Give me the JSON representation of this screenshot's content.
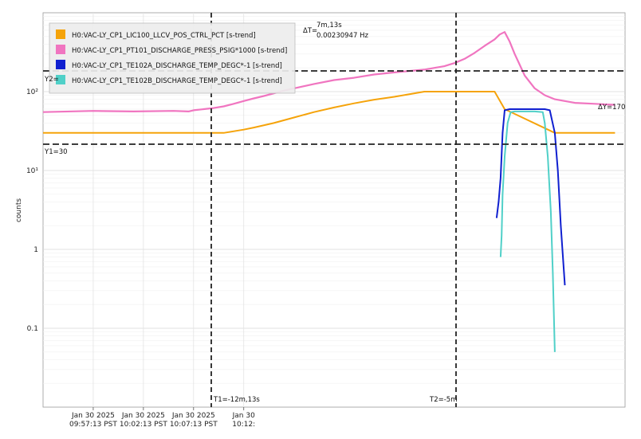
{
  "chart_data": {
    "type": "line",
    "ylabel": "counts",
    "yscale": "log",
    "ylim": [
      0.01,
      1000
    ],
    "y_ticks": [
      {
        "value": 100,
        "label": "10²"
      },
      {
        "value": 10,
        "label": "10¹"
      },
      {
        "value": 1,
        "label": "1"
      },
      {
        "value": 0.1,
        "label": "0.1"
      }
    ],
    "x_unit": "minutes from Jan 30 2025 09:57:13 PST",
    "xlim": [
      -5,
      53
    ],
    "x_ticks": [
      {
        "value": 0,
        "line1": "Jan 30 2025",
        "line2": "09:57:13 PST"
      },
      {
        "value": 5,
        "line1": "Jan 30 2025",
        "line2": "10:02:13 PST"
      },
      {
        "value": 10,
        "line1": "Jan 30 2025",
        "line2": "10:07:13 PST"
      },
      {
        "value": 15,
        "line1": "Jan 30",
        "line2": "10:12:"
      }
    ],
    "grid": true,
    "legend_position": "top-left",
    "series": [
      {
        "name": "H0:VAC-LY_CP1_LIC100_LLCV_POS_CTRL_PCT [s-trend]",
        "color": "#f5a30a",
        "x": [
          -5,
          0,
          4,
          8,
          10,
          10.05,
          11.0,
          12.0,
          12.5,
          13.0,
          15.0,
          16.0,
          18.0,
          20.0,
          22.0,
          24.0,
          26.0,
          28.0,
          30.0,
          33.0,
          35.0,
          38.0,
          40.0,
          41.0,
          46.0,
          50.0,
          52.0
        ],
        "y": [
          30,
          30,
          30,
          30,
          30,
          30,
          30,
          30,
          30,
          30,
          33,
          35,
          40,
          47,
          55,
          63,
          71,
          79,
          86,
          100,
          100,
          100,
          100,
          60,
          30,
          30,
          30
        ]
      },
      {
        "name": "H0:VAC-LY_CP1_PT101_DISCHARGE_PRESS_PSIG*1000 [s-trend]",
        "color": "#f075c0",
        "x": [
          -5,
          0,
          4,
          8,
          9.5,
          10.0,
          11.0,
          12.0,
          13.0,
          14.0,
          15.0,
          16.0,
          17.0,
          18.0,
          19.0,
          20.0,
          22.0,
          24.0,
          26.0,
          28.0,
          30.0,
          31.0,
          32.0,
          33.0,
          34.0,
          35.0,
          35.5,
          36.0,
          37.0,
          38.0,
          39.0,
          40.0,
          40.5,
          41.0,
          41.5,
          42.0,
          42.5,
          43.0,
          44.0,
          45.0,
          46.0,
          48.0,
          50.0,
          52.0
        ],
        "y": [
          55,
          57,
          56,
          57,
          56,
          58,
          60,
          62,
          65,
          70,
          76,
          82,
          88,
          95,
          103,
          110,
          125,
          140,
          150,
          165,
          175,
          180,
          185,
          190,
          200,
          210,
          220,
          230,
          260,
          310,
          380,
          460,
          530,
          570,
          430,
          300,
          220,
          160,
          110,
          90,
          80,
          72,
          70,
          68
        ]
      },
      {
        "name": "H0:VAC-LY_CP1_TE102A_DISCHARGE_TEMP_DEGC*-1 [s-trend]",
        "color": "#1020d0",
        "x": [
          40.2,
          40.4,
          40.6,
          40.8,
          41.0,
          41.5,
          42.0,
          43.0,
          44.0,
          45.0,
          45.5,
          46.0,
          46.3,
          46.6,
          47.0
        ],
        "y": [
          2.5,
          4.0,
          8.0,
          30.0,
          58,
          60,
          60,
          60,
          60,
          60,
          58,
          30,
          10,
          2.0,
          0.35
        ]
      },
      {
        "name": "H0:VAC-LY_CP1_TE102B_DISCHARGE_TEMP_DEGC*-1 [s-trend]",
        "color": "#50d0c8",
        "x": [
          40.6,
          40.7,
          40.8,
          41.0,
          41.3,
          41.6,
          42.0,
          43.0,
          44.0,
          44.8,
          45.0,
          45.3,
          45.6,
          45.8,
          46.0
        ],
        "y": [
          0.8,
          1.5,
          5.0,
          15.0,
          40.0,
          55,
          56,
          56,
          56,
          55,
          40,
          15,
          3.0,
          0.5,
          0.05
        ]
      }
    ],
    "cursors": {
      "t1_label": "T1=-12m,13s",
      "t2_label": "T2=-5m",
      "y1_label": "Y1=30",
      "y2_label": "Y2=",
      "delta_t_label": "ΔT=",
      "delta_t_value": "7m,13s",
      "delta_f_value": "0.00230947 Hz",
      "delta_y_label": "ΔY=170"
    }
  }
}
